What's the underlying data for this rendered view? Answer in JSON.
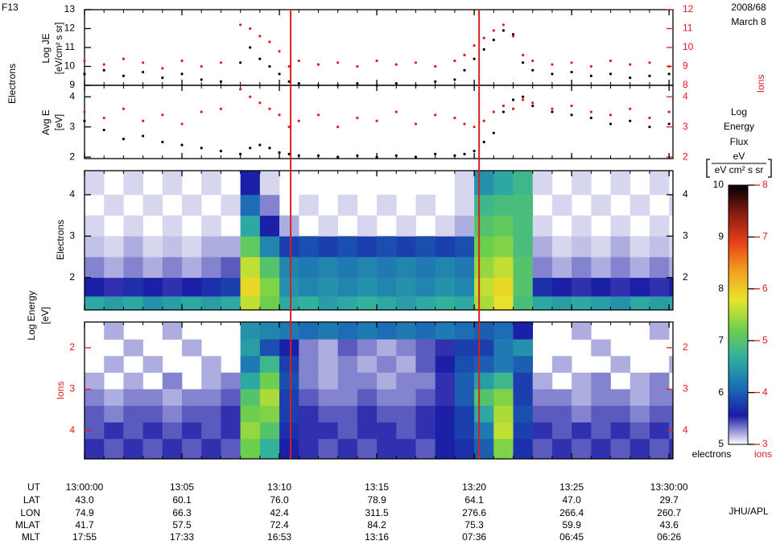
{
  "header": {
    "satellite": "F13",
    "date": "2008/68",
    "day": "March 8"
  },
  "labels": {
    "side_left": "Electrons",
    "side_right": "Ions",
    "energy": "Log Energy",
    "energy_unit": "[eV]",
    "credit": "JHU/APL"
  },
  "xaxis": {
    "xlim": [
      0,
      30.2
    ],
    "xticks": [
      0,
      5,
      10,
      15,
      20,
      25,
      30
    ],
    "xminorticks": [
      0,
      1,
      2,
      3,
      4,
      5,
      6,
      7,
      8,
      9,
      10,
      11,
      12,
      13,
      14,
      15,
      16,
      17,
      18,
      19,
      20,
      21,
      22,
      23,
      24,
      25,
      26,
      27,
      28,
      29,
      30
    ]
  },
  "markers": {
    "color": "#d62020",
    "x": [
      10.58,
      20.25
    ]
  },
  "chart_data": [
    {
      "type": "scatter",
      "ylabel": "Log JE",
      "yunit": "[eV/cm² s sr]",
      "ylim": [
        9,
        13
      ],
      "yticks": [
        9,
        10,
        11,
        12,
        13
      ],
      "y2lim": [
        8,
        12
      ],
      "y2ticks": [
        8,
        9,
        10,
        11,
        12
      ],
      "ytick_color": "#000000",
      "y2tick_color": "#e41a1c",
      "x": [
        0,
        1,
        2,
        3,
        4,
        5,
        6,
        7,
        8,
        8.5,
        9,
        9.5,
        10,
        10.5,
        11,
        12,
        13,
        14,
        15,
        16,
        17,
        18,
        19,
        19.5,
        20,
        20.5,
        21,
        21.5,
        22,
        22.5,
        23,
        24,
        25,
        26,
        27,
        28,
        29,
        30
      ],
      "series": [
        {
          "color": "#000000",
          "values": [
            9.6,
            9.8,
            9.5,
            9.7,
            9.4,
            9.6,
            9.3,
            9.2,
            10.2,
            11.0,
            10.4,
            10.0,
            9.6,
            9.2,
            9.1,
            9.0,
            9.0,
            9.1,
            9.0,
            9.1,
            9.0,
            9.2,
            9.3,
            9.8,
            10.4,
            10.9,
            11.4,
            11.9,
            11.7,
            10.2,
            9.8,
            9.6,
            9.7,
            9.5,
            9.6,
            9.4,
            9.5,
            9.6
          ]
        },
        {
          "color": "#e41a1c",
          "axis": "y2",
          "values": [
            9.3,
            9.1,
            9.4,
            9.2,
            8.9,
            9.3,
            9.0,
            9.2,
            11.2,
            11.0,
            10.6,
            10.3,
            9.8,
            9.0,
            9.3,
            9.1,
            9.2,
            9.0,
            9.3,
            9.1,
            9.2,
            9.0,
            9.3,
            9.6,
            10.1,
            10.5,
            10.9,
            11.2,
            10.6,
            9.6,
            9.3,
            9.1,
            9.2,
            9.0,
            9.3,
            9.1,
            9.2,
            9.0
          ]
        }
      ]
    },
    {
      "type": "scatter",
      "ylabel": "Avg E",
      "yunit": "[eV]",
      "ylim": [
        1.95,
        4.38
      ],
      "yticks": [
        2,
        3,
        4
      ],
      "y2lim": [
        1.95,
        4.38
      ],
      "y2ticks": [
        2,
        3,
        4
      ],
      "ytick_color": "#000000",
      "y2tick_color": "#e41a1c",
      "x": [
        0,
        1,
        2,
        3,
        4,
        5,
        6,
        7,
        8,
        8.5,
        9,
        9.5,
        10,
        10.5,
        11,
        12,
        13,
        14,
        15,
        16,
        17,
        18,
        19,
        19.5,
        20,
        20.5,
        21,
        21.5,
        22,
        22.5,
        23,
        24,
        25,
        26,
        27,
        28,
        29,
        30
      ],
      "series": [
        {
          "color": "#000000",
          "values": [
            3.2,
            2.9,
            2.6,
            2.7,
            2.5,
            2.4,
            2.3,
            2.2,
            2.1,
            2.3,
            2.4,
            2.3,
            2.15,
            2.1,
            2.05,
            2.05,
            2.0,
            2.05,
            2.0,
            2.05,
            2.0,
            2.1,
            2.05,
            2.1,
            2.2,
            2.5,
            2.8,
            3.5,
            3.9,
            4.0,
            3.7,
            3.5,
            3.4,
            3.3,
            3.1,
            3.2,
            3.0,
            3.1
          ]
        },
        {
          "color": "#e41a1c",
          "axis": "y2",
          "values": [
            3.5,
            3.3,
            3.6,
            3.2,
            3.4,
            3.1,
            3.5,
            3.6,
            4.25,
            4.0,
            3.8,
            3.6,
            3.4,
            3.0,
            3.2,
            3.4,
            3.0,
            3.3,
            3.2,
            3.5,
            3.1,
            3.4,
            3.3,
            3.1,
            3.0,
            3.2,
            3.5,
            3.7,
            3.6,
            3.9,
            3.8,
            3.6,
            3.7,
            3.5,
            3.4,
            3.6,
            3.3,
            3.5
          ]
        }
      ]
    },
    {
      "type": "heatmap",
      "ylabel": "Electrons",
      "ylim": [
        1.22,
        4.58
      ],
      "yticks": [
        2,
        3,
        4
      ],
      "y2lim": [
        1.22,
        4.58
      ],
      "y2ticks": [
        2,
        3,
        4
      ],
      "ytick_color": "#000000",
      "y2tick_color": "#000000",
      "caxis": "c",
      "xbins": [
        0,
        1,
        2,
        3,
        4,
        5,
        6,
        7,
        8,
        9,
        10,
        11,
        12,
        13,
        14,
        15,
        16,
        17,
        18,
        19,
        20,
        21,
        22,
        23,
        24,
        25,
        26,
        27,
        28,
        29,
        30,
        30.2
      ],
      "ybins": [
        1.22,
        1.55,
        2.0,
        2.5,
        3.0,
        3.5,
        4.0,
        4.58
      ],
      "z": [
        [
          6.6,
          6.5,
          6.6,
          6.4,
          6.5,
          6.6,
          6.5,
          6.6,
          7.6,
          7.2,
          6.6,
          6.7,
          6.5,
          6.6,
          6.7,
          6.6,
          6.5,
          6.6,
          6.7,
          6.6,
          7.5,
          7.8,
          6.9,
          6.6,
          6.5,
          6.6,
          6.5,
          6.4,
          6.6,
          6.5,
          6.6
        ],
        [
          5.6,
          5.5,
          5.7,
          5.6,
          5.5,
          5.6,
          5.7,
          5.8,
          7.9,
          7.3,
          6.4,
          6.3,
          6.4,
          6.3,
          6.4,
          6.3,
          6.4,
          6.3,
          6.4,
          6.3,
          7.6,
          7.9,
          7.0,
          5.7,
          5.6,
          5.5,
          5.6,
          5.5,
          5.6,
          5.5,
          5.6
        ],
        [
          5.3,
          5.2,
          5.3,
          5.2,
          5.3,
          5.2,
          5.3,
          5.4,
          7.6,
          7.0,
          6.3,
          6.2,
          6.3,
          6.2,
          6.3,
          6.2,
          6.3,
          6.2,
          6.3,
          6.2,
          7.4,
          7.6,
          7.0,
          5.3,
          5.2,
          5.3,
          5.2,
          5.3,
          5.2,
          5.3,
          5.2
        ],
        [
          5.15,
          5.1,
          5.2,
          5.1,
          5.15,
          5.1,
          5.2,
          5.2,
          7.1,
          6.3,
          5.8,
          5.9,
          5.8,
          5.9,
          5.8,
          5.9,
          5.8,
          5.9,
          5.8,
          5.9,
          7.2,
          7.3,
          6.9,
          5.2,
          5.1,
          5.15,
          5.1,
          5.2,
          5.1,
          5.15,
          5.1
        ],
        [
          5.1,
          null,
          5.1,
          null,
          5.1,
          null,
          5.1,
          null,
          6.6,
          5.6,
          5.2,
          null,
          5.1,
          null,
          5.1,
          null,
          5.1,
          null,
          5.1,
          5.2,
          7.0,
          7.1,
          6.9,
          5.1,
          null,
          5.1,
          null,
          5.1,
          null,
          5.1,
          null
        ],
        [
          null,
          5.1,
          null,
          5.1,
          null,
          5.1,
          null,
          5.1,
          6.1,
          5.3,
          null,
          5.1,
          null,
          5.1,
          null,
          5.1,
          null,
          5.1,
          null,
          5.1,
          6.8,
          6.9,
          6.9,
          null,
          5.1,
          null,
          5.1,
          null,
          5.1,
          null,
          5.1
        ],
        [
          5.1,
          null,
          5.1,
          null,
          5.1,
          null,
          5.1,
          null,
          5.6,
          5.1,
          null,
          null,
          null,
          null,
          null,
          null,
          null,
          null,
          null,
          5.1,
          6.4,
          6.6,
          6.8,
          5.1,
          null,
          5.1,
          null,
          5.1,
          null,
          5.1,
          null
        ]
      ]
    },
    {
      "type": "heatmap",
      "ylabel": "Ions",
      "ylim": [
        4.68,
        1.38
      ],
      "yticks": [
        2,
        3,
        4
      ],
      "y2lim": [
        4.68,
        1.38
      ],
      "y2ticks": [
        2,
        3,
        4
      ],
      "ytick_color": "#e41a1c",
      "y2tick_color": "#e41a1c",
      "caxis": "c2",
      "xbins": [
        0,
        1,
        2,
        3,
        4,
        5,
        6,
        7,
        8,
        9,
        10,
        11,
        12,
        13,
        14,
        15,
        16,
        17,
        18,
        19,
        20,
        21,
        22,
        23,
        24,
        25,
        26,
        27,
        28,
        29,
        30,
        30.2
      ],
      "ybins": [
        1.38,
        1.8,
        2.2,
        2.6,
        3.0,
        3.4,
        3.8,
        4.2,
        4.68
      ],
      "z": [
        [
          null,
          3.2,
          null,
          null,
          3.2,
          null,
          null,
          null,
          4.4,
          4.3,
          4.2,
          4.1,
          4.2,
          4.1,
          4.2,
          4.1,
          4.2,
          4.1,
          4.2,
          4.1,
          4.0,
          4.1,
          3.6,
          null,
          null,
          3.2,
          null,
          null,
          null,
          3.2,
          null
        ],
        [
          null,
          null,
          3.2,
          null,
          null,
          3.2,
          null,
          null,
          4.5,
          3.9,
          3.6,
          3.3,
          3.2,
          3.4,
          3.3,
          3.2,
          3.3,
          3.4,
          3.5,
          3.8,
          3.8,
          4.2,
          4.4,
          null,
          null,
          null,
          3.2,
          null,
          null,
          null,
          null
        ],
        [
          null,
          3.2,
          null,
          3.2,
          null,
          null,
          3.2,
          null,
          4.2,
          4.8,
          3.8,
          3.3,
          3.2,
          3.3,
          3.2,
          3.3,
          3.2,
          3.4,
          3.6,
          3.9,
          4.0,
          4.2,
          4.0,
          null,
          3.2,
          null,
          null,
          3.2,
          null,
          null,
          3.2
        ],
        [
          3.2,
          null,
          3.2,
          null,
          3.3,
          null,
          3.2,
          3.3,
          4.6,
          5.2,
          3.9,
          3.3,
          3.2,
          3.3,
          3.3,
          3.2,
          3.3,
          3.3,
          3.5,
          4.0,
          4.5,
          4.8,
          3.8,
          3.2,
          null,
          3.2,
          3.3,
          null,
          3.2,
          3.3,
          null
        ],
        [
          3.3,
          3.2,
          3.3,
          3.3,
          3.2,
          3.3,
          3.3,
          3.4,
          5.0,
          5.5,
          3.8,
          3.4,
          3.3,
          3.3,
          3.4,
          3.3,
          3.3,
          3.4,
          3.5,
          4.0,
          5.0,
          5.3,
          3.8,
          3.3,
          3.3,
          3.2,
          3.3,
          3.3,
          3.2,
          3.3,
          3.3
        ],
        [
          3.4,
          3.3,
          3.4,
          3.4,
          3.3,
          3.4,
          3.4,
          3.5,
          5.2,
          5.3,
          3.8,
          3.5,
          3.4,
          3.4,
          3.5,
          3.4,
          3.4,
          3.5,
          3.6,
          3.8,
          4.6,
          5.5,
          3.9,
          3.4,
          3.4,
          3.3,
          3.4,
          3.4,
          3.3,
          3.4,
          3.4
        ],
        [
          3.4,
          3.5,
          3.4,
          3.5,
          3.4,
          3.5,
          3.4,
          3.5,
          5.4,
          5.0,
          3.7,
          3.5,
          3.5,
          3.4,
          3.5,
          3.5,
          3.4,
          3.5,
          3.6,
          3.8,
          4.2,
          5.6,
          3.8,
          3.5,
          3.4,
          3.5,
          3.4,
          3.5,
          3.4,
          3.5,
          3.4
        ],
        [
          3.5,
          3.4,
          3.5,
          3.4,
          3.5,
          3.4,
          3.5,
          3.4,
          5.2,
          4.7,
          3.6,
          3.5,
          3.4,
          3.5,
          3.4,
          3.5,
          3.5,
          3.4,
          3.6,
          3.7,
          4.0,
          5.3,
          3.7,
          3.4,
          3.5,
          3.4,
          3.5,
          3.4,
          3.5,
          3.4,
          3.5
        ]
      ]
    }
  ],
  "colorbar": {
    "title": [
      "Log",
      "Energy",
      "Flux"
    ],
    "unit_num": "eV",
    "unit_den": "eV cm² s sr",
    "clim": [
      5,
      10
    ],
    "cticks": [
      5,
      6,
      7,
      8,
      9,
      10
    ],
    "c2lim": [
      3,
      8
    ],
    "c2ticks": [
      3,
      4,
      5,
      6,
      7,
      8
    ],
    "label": "electrons",
    "label2": "ions",
    "c2_color": "#e41a1c",
    "colorscale": [
      "#ffffff",
      "#1a1aa6",
      "#1c6fb5",
      "#2fb0a0",
      "#6fd04a",
      "#e6e62a",
      "#f2a21e",
      "#e8401a",
      "#8a1c10",
      "#000000"
    ]
  },
  "ephemeris": {
    "labels": [
      "UT",
      "LAT",
      "LON",
      "MLAT",
      "MLT"
    ],
    "rows": [
      [
        "13:00:00",
        "13:05",
        "13:10",
        "13:15",
        "13:20",
        "13:25",
        "13:30:00"
      ],
      [
        "43.0",
        "60.1",
        "76.0",
        "78.9",
        "64.1",
        "47.0",
        "29.7"
      ],
      [
        "74.9",
        "66.3",
        "42.4",
        "311.5",
        "276.6",
        "266.4",
        "260.7"
      ],
      [
        "41.7",
        "57.5",
        "72.4",
        "84.2",
        "75.3",
        "59.9",
        "43.6"
      ],
      [
        "17:55",
        "17:33",
        "16:53",
        "13:16",
        "07:36",
        "06:45",
        "06:26"
      ]
    ]
  }
}
